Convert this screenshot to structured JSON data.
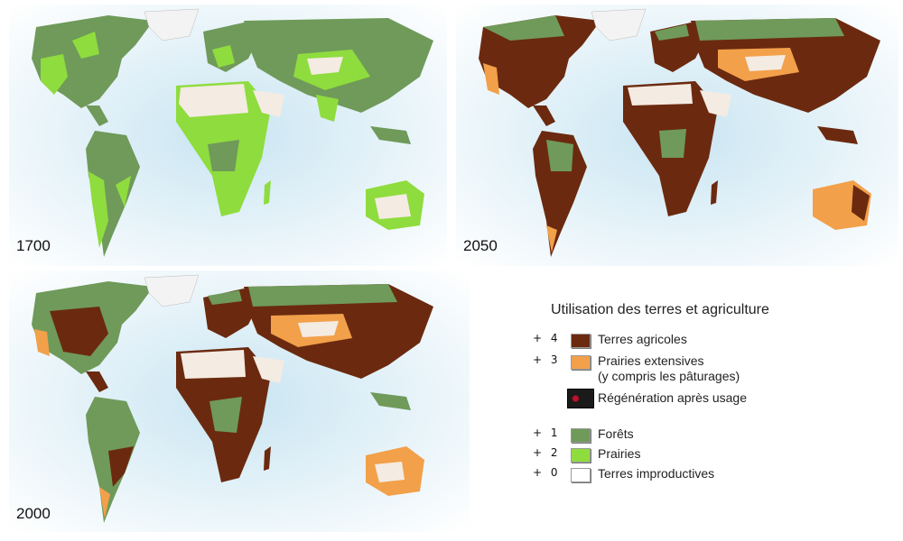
{
  "maps": [
    {
      "year": "1700"
    },
    {
      "year": "2050"
    },
    {
      "year": "2000"
    }
  ],
  "legend": {
    "title": "Utilisation des terres et agriculture",
    "items": [
      {
        "mark": "+ 4",
        "label": "Terres agricoles",
        "color": "#6b2a0f"
      },
      {
        "mark": "+ 3",
        "label": "Prairies extensives",
        "sub": "(y compris les pâturages)",
        "color": "#f2a04a"
      },
      {
        "mark": "",
        "label": "Régénération après usage",
        "color": "#1a1a1a"
      },
      {
        "mark": "+ 1",
        "label": "Forêts",
        "color": "#6f9a5a"
      },
      {
        "mark": "+ 2",
        "label": "Prairies",
        "color": "#8fdc3e"
      },
      {
        "mark": "+ 0",
        "label": "Terres improductives",
        "color": "#ffffff"
      }
    ]
  },
  "colors": {
    "ocean": "#dceef6",
    "forest": "#6f9a5a",
    "grassland": "#8fdc3e",
    "cropland": "#6b2a0f",
    "pasture": "#f2a04a",
    "barren": "#f4ebe2",
    "ice": "#f3f3f3"
  }
}
